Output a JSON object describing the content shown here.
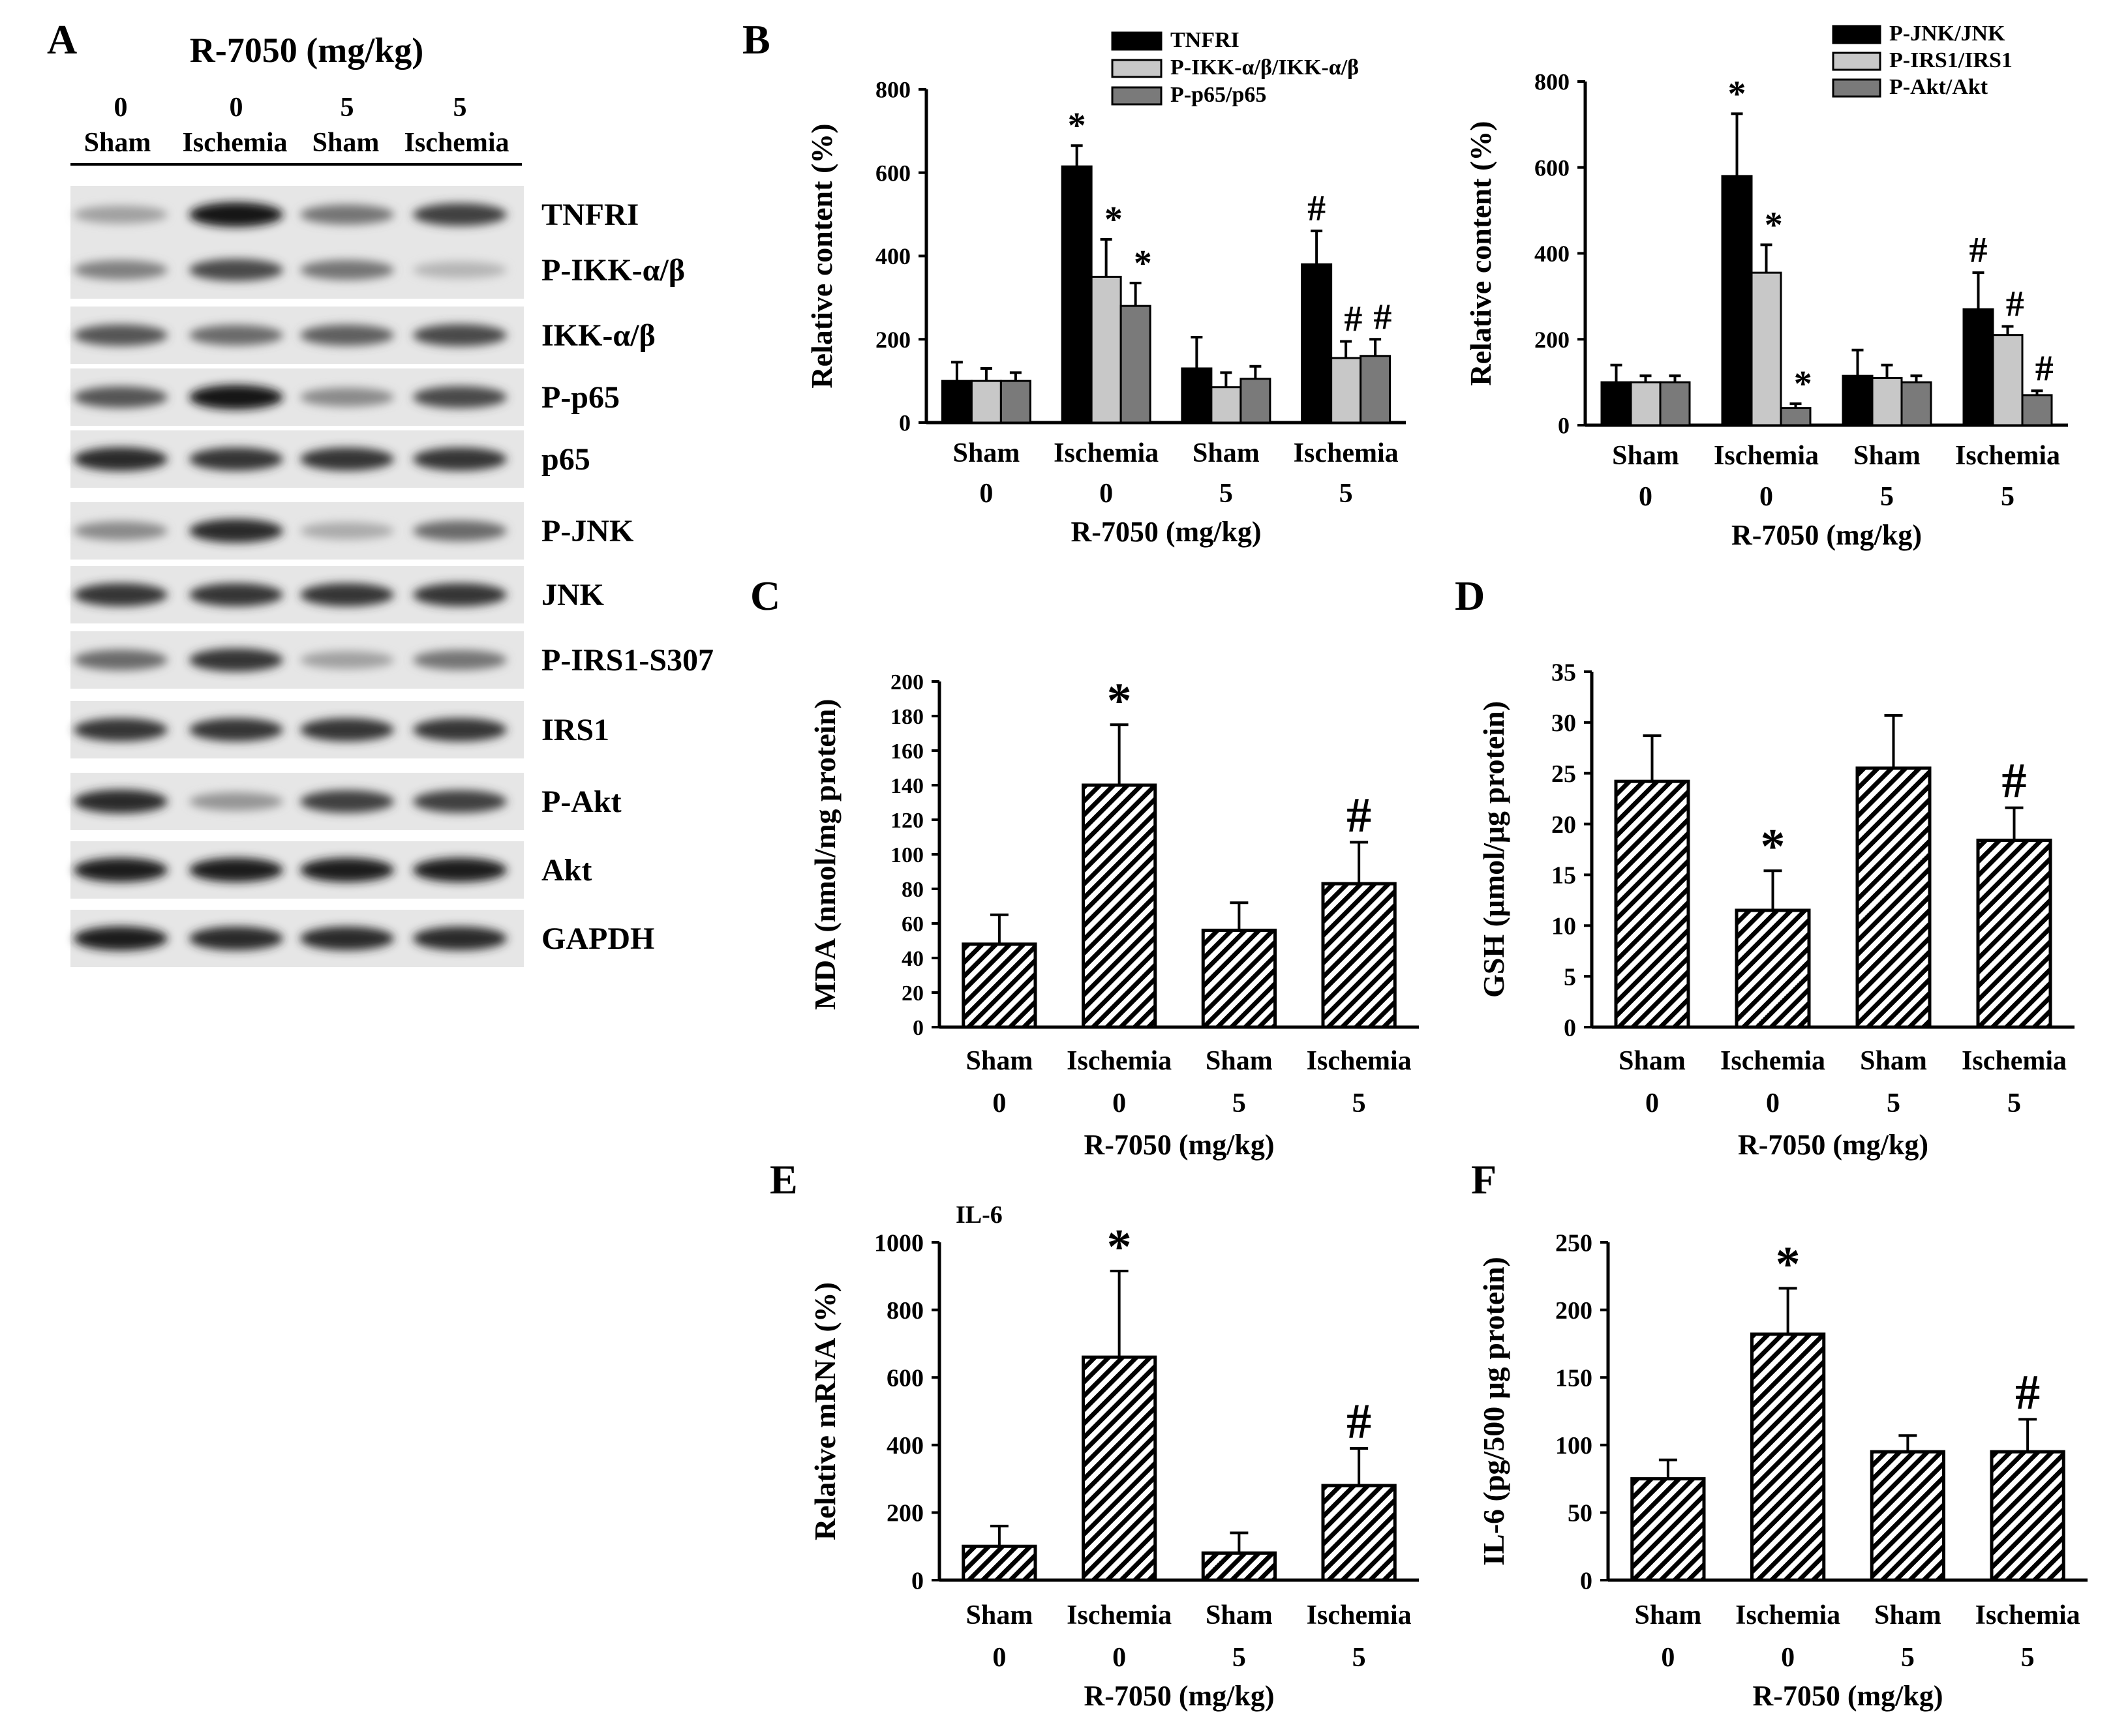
{
  "x_axis_shared": {
    "groups": [
      "Sham",
      "Ischemia",
      "Sham",
      "Ischemia"
    ],
    "doses": [
      "0",
      "0",
      "5",
      "5"
    ],
    "title": "R-7050 (mg/kg)"
  },
  "panels": [
    {
      "letter": "A"
    },
    {
      "letter": "B"
    },
    {
      "letter": "C"
    },
    {
      "letter": "D"
    },
    {
      "letter": "E"
    },
    {
      "letter": "F"
    }
  ],
  "western_blot": {
    "title": "R-7050 (mg/kg)",
    "lanes": [
      {
        "dose": "0",
        "group": "Sham"
      },
      {
        "dose": "0",
        "group": "Ischemia"
      },
      {
        "dose": "5",
        "group": "Sham"
      },
      {
        "dose": "5",
        "group": "Ischemia"
      }
    ],
    "bands": [
      {
        "label": "TNFRI",
        "intensity": [
          0.35,
          1.0,
          0.55,
          0.8
        ]
      },
      {
        "label": "P-IKK-α/β",
        "intensity": [
          0.5,
          0.75,
          0.55,
          0.25
        ]
      },
      {
        "label": "IKK-α/β",
        "intensity": [
          0.7,
          0.6,
          0.65,
          0.75
        ]
      },
      {
        "label": "P-p65",
        "intensity": [
          0.7,
          1.0,
          0.45,
          0.75
        ]
      },
      {
        "label": "p65",
        "intensity": [
          0.9,
          0.85,
          0.85,
          0.85
        ]
      },
      {
        "label": "P-JNK",
        "intensity": [
          0.45,
          0.9,
          0.3,
          0.6
        ]
      },
      {
        "label": "JNK",
        "intensity": [
          0.85,
          0.85,
          0.85,
          0.85
        ]
      },
      {
        "label": "P-IRS1-S307",
        "intensity": [
          0.6,
          0.85,
          0.35,
          0.55
        ]
      },
      {
        "label": "IRS1",
        "intensity": [
          0.85,
          0.85,
          0.85,
          0.85
        ]
      },
      {
        "label": "P-Akt",
        "intensity": [
          0.9,
          0.4,
          0.8,
          0.8
        ]
      },
      {
        "label": "Akt",
        "intensity": [
          0.95,
          0.95,
          0.95,
          0.95
        ]
      },
      {
        "label": "GAPDH",
        "intensity": [
          0.95,
          0.9,
          0.9,
          0.9
        ]
      }
    ]
  },
  "chart_data": [
    {
      "panel": "B-left",
      "type": "bar",
      "categories": [
        "Sham 0",
        "Ischemia 0",
        "Sham 5",
        "Ischemia 5"
      ],
      "ylabel": "Relative content (%)",
      "xlabel": "R-7050 (mg/kg)",
      "ylim": [
        0,
        800
      ],
      "yticks": [
        0,
        200,
        400,
        600,
        800
      ],
      "legend": "top-right",
      "series": [
        {
          "name": "TNFRI",
          "fill": "#000000",
          "values": [
            100,
            615,
            130,
            380
          ],
          "errors": [
            45,
            50,
            75,
            80
          ],
          "marks": [
            "",
            "*",
            "",
            "#"
          ]
        },
        {
          "name": "P-IKK-α/β/IKK-α/β",
          "fill": "#c8c8c8",
          "values": [
            100,
            350,
            85,
            155
          ],
          "errors": [
            30,
            90,
            35,
            40
          ],
          "marks": [
            "",
            "*",
            "",
            "#"
          ]
        },
        {
          "name": "P-p65/p65",
          "fill": "#7a7a7a",
          "values": [
            100,
            280,
            105,
            160
          ],
          "errors": [
            20,
            55,
            30,
            40
          ],
          "marks": [
            "",
            "*",
            "",
            "#"
          ]
        }
      ]
    },
    {
      "panel": "B-right",
      "type": "bar",
      "categories": [
        "Sham 0",
        "Ischemia 0",
        "Sham 5",
        "Ischemia 5"
      ],
      "ylabel": "Relative content (%)",
      "xlabel": "R-7050 (mg/kg)",
      "ylim": [
        0,
        800
      ],
      "yticks": [
        0,
        200,
        400,
        600,
        800
      ],
      "legend": "top-right",
      "series": [
        {
          "name": "P-JNK/JNK",
          "fill": "#000000",
          "values": [
            100,
            580,
            115,
            270
          ],
          "errors": [
            40,
            145,
            60,
            85
          ],
          "marks": [
            "",
            "*",
            "",
            "#"
          ]
        },
        {
          "name": "P-IRS1/IRS1",
          "fill": "#c8c8c8",
          "values": [
            100,
            355,
            110,
            210
          ],
          "errors": [
            15,
            65,
            30,
            20
          ],
          "marks": [
            "",
            "*",
            "",
            "#"
          ]
        },
        {
          "name": "P-Akt/Akt",
          "fill": "#7a7a7a",
          "values": [
            100,
            40,
            100,
            70
          ],
          "errors": [
            15,
            10,
            15,
            10
          ],
          "marks": [
            "",
            "*",
            "",
            "#"
          ]
        }
      ]
    },
    {
      "panel": "C",
      "type": "bar",
      "categories": [
        "Sham 0",
        "Ischemia 0",
        "Sham 5",
        "Ischemia 5"
      ],
      "ylabel": "MDA (nmol/mg protein)",
      "xlabel": "R-7050 (mg/kg)",
      "ylim": [
        0,
        200
      ],
      "yticks": [
        0,
        20,
        40,
        60,
        80,
        100,
        120,
        140,
        160,
        180,
        200
      ],
      "series": [
        {
          "name": "",
          "fill": "hatch",
          "values": [
            48,
            140,
            56,
            83
          ],
          "errors": [
            17,
            35,
            16,
            24
          ],
          "marks": [
            "",
            "*",
            "",
            "#"
          ]
        }
      ]
    },
    {
      "panel": "D",
      "type": "bar",
      "categories": [
        "Sham 0",
        "Ischemia 0",
        "Sham 5",
        "Ischemia 5"
      ],
      "ylabel": "GSH (μmol/μg protein)",
      "xlabel": "R-7050 (mg/kg)",
      "ylim": [
        0,
        35
      ],
      "yticks": [
        0,
        5,
        10,
        15,
        20,
        25,
        30,
        35
      ],
      "series": [
        {
          "name": "",
          "fill": "hatch",
          "values": [
            24.2,
            11.5,
            25.5,
            18.4
          ],
          "errors": [
            4.5,
            3.9,
            5.2,
            3.2
          ],
          "marks": [
            "",
            "*",
            "",
            "#"
          ]
        }
      ]
    },
    {
      "panel": "E",
      "type": "bar",
      "title": "IL-6",
      "categories": [
        "Sham 0",
        "Ischemia 0",
        "Sham 5",
        "Ischemia 5"
      ],
      "ylabel": "Relative mRNA (%)",
      "xlabel": "R-7050 (mg/kg)",
      "ylim": [
        0,
        1000
      ],
      "yticks": [
        0,
        200,
        400,
        600,
        800,
        1000
      ],
      "series": [
        {
          "name": "",
          "fill": "hatch",
          "values": [
            100,
            660,
            80,
            280
          ],
          "errors": [
            60,
            255,
            60,
            110
          ],
          "marks": [
            "",
            "*",
            "",
            "#"
          ]
        }
      ]
    },
    {
      "panel": "F",
      "type": "bar",
      "categories": [
        "Sham 0",
        "Ischemia 0",
        "Sham 5",
        "Ischemia 5"
      ],
      "ylabel": "IL-6 (pg/500 μg protein)",
      "xlabel": "R-7050 (mg/kg)",
      "ylim": [
        0,
        250
      ],
      "yticks": [
        0,
        50,
        100,
        150,
        200,
        250
      ],
      "series": [
        {
          "name": "",
          "fill": "hatch",
          "values": [
            75,
            182,
            95,
            95
          ],
          "errors": [
            14,
            34,
            12,
            24
          ],
          "marks": [
            "",
            "*",
            "",
            "#"
          ]
        }
      ]
    }
  ]
}
